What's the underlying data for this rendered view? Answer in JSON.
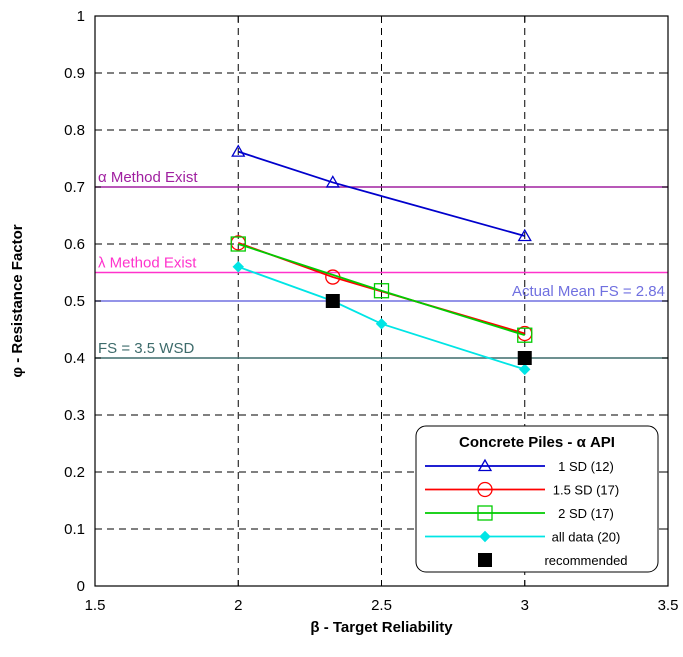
{
  "chart_data": {
    "type": "line",
    "xlabel": "β - Target Reliability",
    "ylabel": "φ - Resistance Factor",
    "xlim": [
      1.5,
      3.5
    ],
    "ylim": [
      0,
      1
    ],
    "xticks": [
      "1.5",
      "2",
      "2.5",
      "3",
      "3.5"
    ],
    "yticks": [
      "0",
      "0.1",
      "0.2",
      "0.3",
      "0.4",
      "0.5",
      "0.6",
      "0.7",
      "0.8",
      "0.9",
      "1"
    ],
    "grid": true,
    "legend_title": "Concrete Piles - α API",
    "legend_position": "bottom-right",
    "reference_lines": [
      {
        "label": "α Method Exist",
        "y": 0.7,
        "color": "#a020a0",
        "label_side": "left"
      },
      {
        "label": "λ Method Exist",
        "y": 0.55,
        "color": "#ff33cc",
        "label_side": "left"
      },
      {
        "label": "Actual Mean FS = 2.84",
        "y": 0.5,
        "color": "#7070e0",
        "label_side": "right"
      },
      {
        "label": "FS = 3.5  WSD",
        "y": 0.4,
        "color": "#3d6b6b",
        "label_side": "left"
      }
    ],
    "series": [
      {
        "name": "1 SD (12)",
        "color": "#0000cc",
        "marker": "triangle",
        "line": true,
        "x": [
          2,
          2.33,
          3
        ],
        "y": [
          0.762,
          0.708,
          0.614
        ]
      },
      {
        "name": "1.5 SD (17)",
        "color": "#ff0000",
        "marker": "circle",
        "line": true,
        "x": [
          2,
          2.33,
          3
        ],
        "y": [
          0.602,
          0.542,
          0.443
        ]
      },
      {
        "name": "2 SD (17)",
        "color": "#00cc00",
        "marker": "square",
        "line": true,
        "x": [
          2,
          2.5,
          3
        ],
        "y": [
          0.6,
          0.518,
          0.44
        ]
      },
      {
        "name": "all data (20)",
        "color": "#00e5e5",
        "marker": "diamond",
        "line": true,
        "x": [
          2,
          2.33,
          2.5,
          3
        ],
        "y": [
          0.56,
          0.5,
          0.46,
          0.38
        ]
      },
      {
        "name": "recommended",
        "color": "#000000",
        "marker": "filled-square",
        "line": false,
        "x": [
          2.33,
          3
        ],
        "y": [
          0.5,
          0.4
        ]
      }
    ]
  }
}
